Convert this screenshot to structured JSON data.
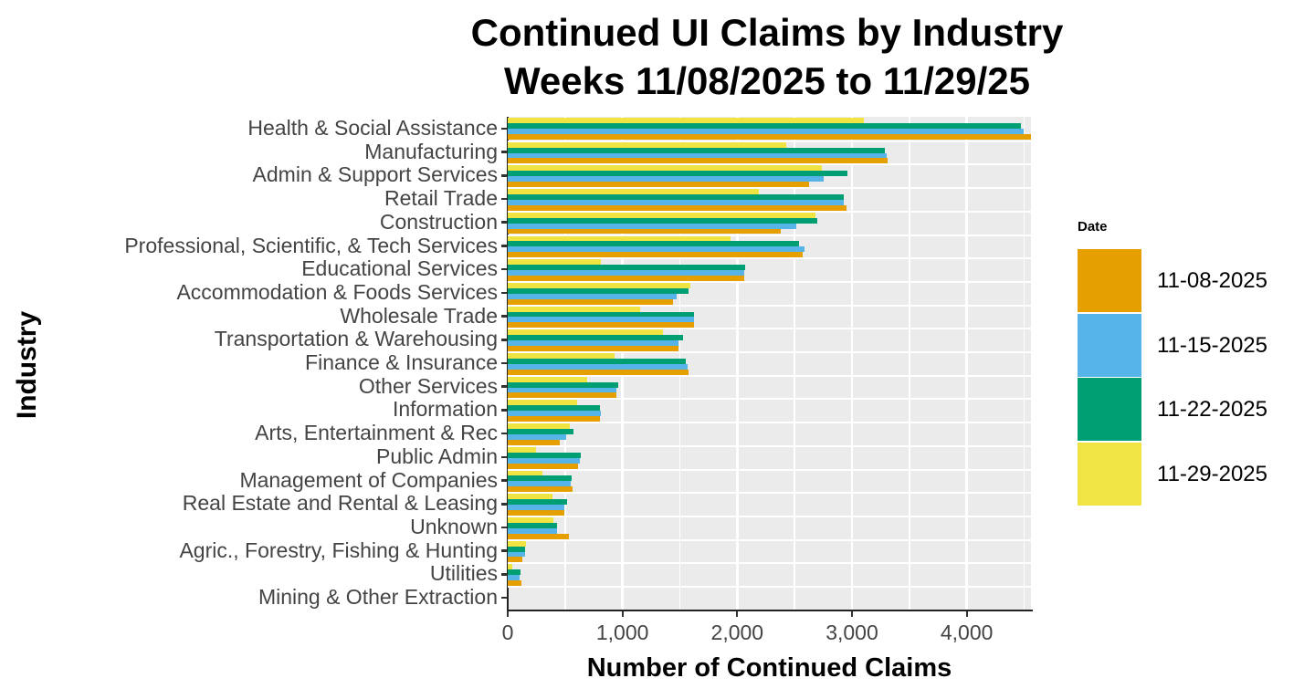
{
  "title": {
    "line1": "Continued UI Claims by Industry",
    "line2": "Weeks 11/08/2025 to 11/29/25"
  },
  "axes": {
    "x_title": "Number of Continued Claims",
    "y_title": "Industry",
    "x_ticks": [
      0,
      1000,
      2000,
      3000,
      4000
    ],
    "x_tick_labels": [
      "0",
      "1,000",
      "2,000",
      "3,000",
      "4,000"
    ],
    "x_max": 4560,
    "minor_grid_interval": 500,
    "major_grid_interval": 1000
  },
  "legend": {
    "title": "Date",
    "entries": [
      {
        "label": "11-08-2025",
        "color": "#E69F00"
      },
      {
        "label": "11-15-2025",
        "color": "#56B4E9"
      },
      {
        "label": "11-22-2025",
        "color": "#009E73"
      },
      {
        "label": "11-29-2025",
        "color": "#F0E442"
      }
    ]
  },
  "colors": {
    "panel_background": "#EBEBEB",
    "gridline": "#FFFFFF",
    "axis_text": "#444444",
    "title_text": "#000000"
  },
  "chart_data": {
    "type": "bar",
    "orientation": "horizontal",
    "title": "Continued UI Claims by Industry Weeks 11/08/2025 to 11/29/25",
    "xlabel": "Number of Continued Claims",
    "ylabel": "Industry",
    "xlim": [
      0,
      4560
    ],
    "grid": true,
    "legend_position": "right",
    "bar_order_top_to_bottom": [
      "11-29-2025",
      "11-22-2025",
      "11-15-2025",
      "11-08-2025"
    ],
    "categories": [
      "Health & Social Assistance",
      "Manufacturing",
      "Admin & Support Services",
      "Retail Trade",
      "Construction",
      "Professional, Scientific, & Tech Services",
      "Educational Services",
      "Accommodation & Foods Services",
      "Wholesale Trade",
      "Transportation & Warehousing",
      "Finance & Insurance",
      "Other Services",
      "Information",
      "Arts, Entertainment & Rec",
      "Public Admin",
      "Management of Companies",
      "Real Estate and Rental & Leasing",
      "Unknown",
      "Agric., Forestry, Fishing & Hunting",
      "Utilities",
      "Mining & Other Extraction"
    ],
    "series": [
      {
        "name": "11-08-2025",
        "color": "#E69F00",
        "values": [
          4560,
          3310,
          2630,
          2955,
          2380,
          2570,
          2065,
          1440,
          1620,
          1485,
          1575,
          950,
          805,
          455,
          615,
          565,
          495,
          530,
          130,
          120,
          0
        ]
      },
      {
        "name": "11-15-2025",
        "color": "#56B4E9",
        "values": [
          4500,
          3300,
          2755,
          2930,
          2515,
          2585,
          2065,
          1470,
          1620,
          1490,
          1570,
          950,
          810,
          510,
          630,
          550,
          495,
          430,
          155,
          100,
          0
        ]
      },
      {
        "name": "11-22-2025",
        "color": "#009E73",
        "values": [
          4470,
          3290,
          2960,
          2925,
          2700,
          2540,
          2070,
          1575,
          1620,
          1525,
          1555,
          965,
          805,
          570,
          640,
          555,
          515,
          430,
          155,
          115,
          0
        ]
      },
      {
        "name": "11-29-2025",
        "color": "#F0E442",
        "values": [
          3100,
          2425,
          2740,
          2190,
          2685,
          1945,
          815,
          1590,
          1155,
          1350,
          930,
          695,
          605,
          545,
          245,
          300,
          390,
          395,
          160,
          40,
          0
        ]
      }
    ]
  }
}
